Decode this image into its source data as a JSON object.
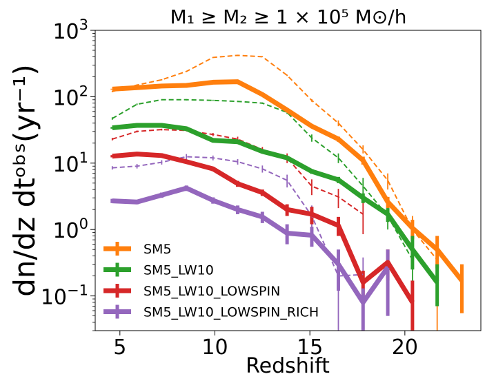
{
  "chart_data": {
    "type": "line",
    "title": "M₁ ≥ M₂ ≥ 1 × 10⁵ M⊙/h",
    "xlabel": "Redshift",
    "ylabel": "dn/dz dtᵒᵇˢ(yr⁻¹)",
    "xlim": [
      3.7,
      24.0
    ],
    "ylim": [
      0.03,
      1000
    ],
    "yscale": "log",
    "x_ticks": [
      5,
      10,
      15,
      20
    ],
    "x_tick_labels": [
      "5",
      "10",
      "15",
      "20"
    ],
    "y_ticks": [
      {
        "value": 0.1,
        "base": "10",
        "exp": "−1"
      },
      {
        "value": 1,
        "base": "10",
        "exp": "0"
      },
      {
        "value": 10,
        "base": "10",
        "exp": "1"
      },
      {
        "value": 100,
        "base": "10",
        "exp": "2"
      },
      {
        "value": 1000,
        "base": "10",
        "exp": "3"
      }
    ],
    "legend_position": "lower-left",
    "series": [
      {
        "name": "SM5",
        "color": "#ff7f0e",
        "x": [
          4.6,
          5.9,
          7.2,
          8.5,
          9.9,
          11.2,
          12.5,
          13.8,
          15.1,
          16.5,
          17.8,
          19.1,
          20.4,
          21.7,
          23.0
        ],
        "values": [
          130,
          137,
          145,
          148,
          165,
          168,
          108,
          63,
          36,
          23,
          11,
          2.6,
          1.05,
          0.5,
          0.17
        ],
        "err_low": [
          128,
          134,
          142,
          145,
          162,
          165,
          104,
          60,
          34,
          21,
          9.5,
          2.1,
          0.72,
          0.26,
          0.055
        ],
        "err_high": [
          132,
          140,
          148,
          151,
          168,
          171,
          112,
          66,
          38,
          25,
          12.5,
          3.1,
          1.4,
          0.8,
          0.3
        ],
        "dashed_x": [
          4.6,
          5.9,
          7.2,
          8.5,
          9.9,
          11.2,
          12.5,
          13.8,
          15.1,
          16.5,
          17.8,
          19.1,
          20.4,
          21.7
        ],
        "dashed_values": [
          120,
          150,
          180,
          240,
          390,
          420,
          400,
          210,
          88,
          40,
          16,
          5.5,
          1.0,
          0.35
        ],
        "dashed_err_low": [
          117,
          147,
          176,
          236,
          385,
          415,
          395,
          205,
          84,
          36,
          14,
          4.0,
          0.45,
          0.001
        ],
        "dashed_err_high": [
          123,
          153,
          184,
          244,
          395,
          425,
          405,
          215,
          92,
          44,
          18.5,
          7.0,
          1.6,
          0.7
        ]
      },
      {
        "name": "SM5_LW10",
        "color": "#2ca02c",
        "x": [
          4.6,
          5.9,
          7.2,
          8.5,
          9.9,
          11.2,
          12.5,
          13.8,
          15.1,
          16.5,
          17.8,
          19.1,
          20.4,
          21.7
        ],
        "values": [
          34,
          37,
          37,
          33,
          22,
          21,
          15,
          12,
          7.5,
          5.6,
          3.0,
          1.7,
          0.5,
          0.16
        ],
        "err_low": [
          33,
          36,
          36,
          32,
          21.3,
          20.2,
          14.2,
          11.2,
          6.9,
          5.0,
          2.5,
          1.3,
          0.25,
          0.07
        ],
        "err_high": [
          35,
          38,
          38,
          34,
          22.7,
          21.8,
          15.8,
          12.8,
          8.1,
          6.2,
          3.5,
          2.1,
          0.8,
          0.3
        ],
        "dashed_x": [
          4.6,
          5.9,
          7.2,
          8.5,
          9.9,
          11.2,
          12.5,
          13.8,
          15.1,
          16.5,
          17.8,
          19.1,
          20.4
        ],
        "dashed_values": [
          47,
          77,
          90,
          90,
          88,
          85,
          80,
          58,
          24,
          12,
          4.5,
          1.6,
          0.35
        ],
        "dashed_err_low": [
          45,
          75,
          88,
          88,
          86,
          83,
          78,
          55,
          21,
          10,
          3.3,
          1.0,
          0.12
        ],
        "dashed_err_high": [
          49,
          79,
          92,
          92,
          90,
          87,
          82,
          61,
          27,
          14,
          6.0,
          2.3,
          0.6
        ]
      },
      {
        "name": "SM5_LW10_LOWSPIN",
        "color": "#d62728",
        "x": [
          4.6,
          5.9,
          7.2,
          8.5,
          9.9,
          11.2,
          12.5,
          13.8,
          15.1,
          16.5,
          17.8,
          19.1,
          20.4
        ],
        "values": [
          12.7,
          13.7,
          13.0,
          10.5,
          8.2,
          4.9,
          3.6,
          2.0,
          1.7,
          1.15,
          0.16,
          0.32,
          0.08
        ],
        "err_low": [
          12.2,
          13.2,
          12.4,
          9.9,
          7.6,
          4.4,
          3.2,
          1.6,
          1.2,
          0.8,
          0.09,
          0.17,
          0.001
        ],
        "err_high": [
          13.2,
          14.2,
          13.6,
          11.1,
          8.8,
          5.4,
          4.0,
          2.4,
          2.2,
          1.55,
          0.24,
          0.5,
          0.17
        ],
        "dashed_x": [
          4.6,
          5.9,
          7.2,
          8.5,
          9.9,
          11.2,
          12.5,
          13.8,
          15.1,
          16.5,
          17.8
        ],
        "dashed_values": [
          23,
          30,
          32,
          31,
          27,
          23,
          16,
          12,
          4.5,
          3.1,
          1.7
        ],
        "dashed_err_low": [
          22,
          29,
          31,
          30,
          25.5,
          21,
          14.5,
          10,
          3.3,
          2.1,
          0.85
        ],
        "dashed_err_high": [
          24,
          31,
          33,
          32,
          28.5,
          25,
          17.5,
          14,
          5.7,
          4.1,
          2.6
        ]
      },
      {
        "name": "SM5_LW10_LOWSPIN_RICH",
        "color": "#9467bd",
        "x": [
          4.6,
          5.9,
          7.2,
          8.5,
          9.9,
          11.2,
          12.5,
          13.8,
          15.1,
          16.5,
          17.8,
          19.1
        ],
        "values": [
          2.7,
          2.6,
          3.3,
          4.2,
          2.75,
          2.0,
          1.55,
          0.88,
          0.82,
          0.3,
          0.08,
          0.27
        ],
        "err_low": [
          2.5,
          2.4,
          3.0,
          3.8,
          2.45,
          1.7,
          1.25,
          0.6,
          0.55,
          0.12,
          0.03,
          0.05
        ],
        "err_high": [
          2.9,
          2.8,
          3.6,
          4.6,
          3.05,
          2.3,
          1.85,
          1.2,
          1.1,
          0.5,
          0.13,
          0.5
        ],
        "dashed_x": [
          4.6,
          5.9,
          7.2,
          8.5,
          9.9,
          11.2,
          12.5,
          13.8,
          15.1,
          16.5,
          17.8
        ],
        "dashed_values": [
          8.5,
          9.0,
          10.3,
          12.5,
          12.0,
          10.5,
          8.2,
          5.5,
          1.6,
          0.2,
          0.21
        ],
        "dashed_err_low": [
          8.0,
          8.3,
          9.5,
          11.3,
          11.0,
          9.5,
          7.2,
          4.3,
          1.0,
          0.001,
          0.04
        ],
        "dashed_err_high": [
          9.0,
          9.7,
          11.1,
          13.7,
          13.0,
          11.5,
          9.2,
          6.7,
          2.3,
          0.4,
          0.38
        ]
      }
    ]
  }
}
